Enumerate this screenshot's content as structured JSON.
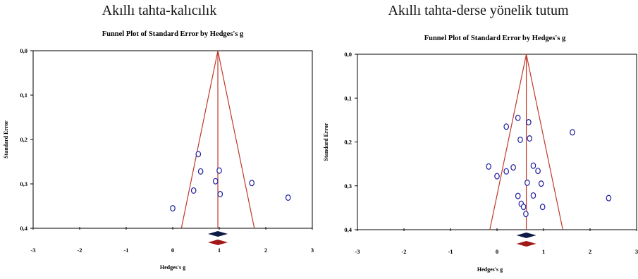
{
  "chart_data": [
    {
      "type": "scatter",
      "panel_caption": "Akıllı tahta-kalıcılık",
      "title": "Funnel Plot of Standard Error by Hedges's g",
      "xlabel": "Hedges's g",
      "ylabel": "Standard Error",
      "xlim": [
        -3,
        3
      ],
      "ylim": [
        0.0,
        0.4
      ],
      "y_inverted": true,
      "x_ticks": [
        "-3",
        "-2",
        "-1",
        "0",
        "1",
        "2",
        "3"
      ],
      "y_ticks": [
        "0,0",
        "0,1",
        "0,2",
        "0,3",
        "0,4"
      ],
      "summary_effect": 0.97,
      "imputed_summary_effect": 0.97,
      "points": [
        {
          "x": 0.0,
          "y": 0.355
        },
        {
          "x": 0.45,
          "y": 0.315
        },
        {
          "x": 0.55,
          "y": 0.233
        },
        {
          "x": 0.6,
          "y": 0.272
        },
        {
          "x": 0.92,
          "y": 0.294
        },
        {
          "x": 1.0,
          "y": 0.27
        },
        {
          "x": 1.02,
          "y": 0.323
        },
        {
          "x": 1.7,
          "y": 0.298
        },
        {
          "x": 2.48,
          "y": 0.331
        }
      ],
      "colors": {
        "funnel": "#c0392b",
        "points": "#1a1aa0",
        "observed": "#0d1a45",
        "imputed": "#a01818"
      }
    },
    {
      "type": "scatter",
      "panel_caption": "Akıllı tahta-derse yönelik tutum",
      "title": "Funnel Plot of Standard Error by Hedges's g",
      "xlabel": "Hedges's g",
      "ylabel": "Standard Error",
      "xlim": [
        -3,
        3
      ],
      "ylim": [
        0.0,
        0.4
      ],
      "y_inverted": true,
      "x_ticks": [
        "-3",
        "-2",
        "-1",
        "0",
        "1",
        "2",
        "3"
      ],
      "y_ticks": [
        "0,0",
        "0,1",
        "0,2",
        "0,3",
        "0,4"
      ],
      "summary_effect": 0.63,
      "imputed_summary_effect": 0.63,
      "points": [
        {
          "x": -0.18,
          "y": 0.256
        },
        {
          "x": 0.0,
          "y": 0.278
        },
        {
          "x": 0.2,
          "y": 0.165
        },
        {
          "x": 0.2,
          "y": 0.267
        },
        {
          "x": 0.35,
          "y": 0.258
        },
        {
          "x": 0.45,
          "y": 0.323
        },
        {
          "x": 0.45,
          "y": 0.145
        },
        {
          "x": 0.5,
          "y": 0.195
        },
        {
          "x": 0.52,
          "y": 0.341
        },
        {
          "x": 0.57,
          "y": 0.348
        },
        {
          "x": 0.62,
          "y": 0.364
        },
        {
          "x": 0.65,
          "y": 0.293
        },
        {
          "x": 0.68,
          "y": 0.155
        },
        {
          "x": 0.7,
          "y": 0.192
        },
        {
          "x": 0.78,
          "y": 0.322
        },
        {
          "x": 0.78,
          "y": 0.254
        },
        {
          "x": 0.88,
          "y": 0.266
        },
        {
          "x": 0.95,
          "y": 0.295
        },
        {
          "x": 0.98,
          "y": 0.348
        },
        {
          "x": 1.62,
          "y": 0.178
        },
        {
          "x": 2.4,
          "y": 0.328
        }
      ],
      "colors": {
        "funnel": "#c0392b",
        "points": "#1a1aa0",
        "observed": "#0d1a45",
        "imputed": "#a01818"
      }
    }
  ]
}
